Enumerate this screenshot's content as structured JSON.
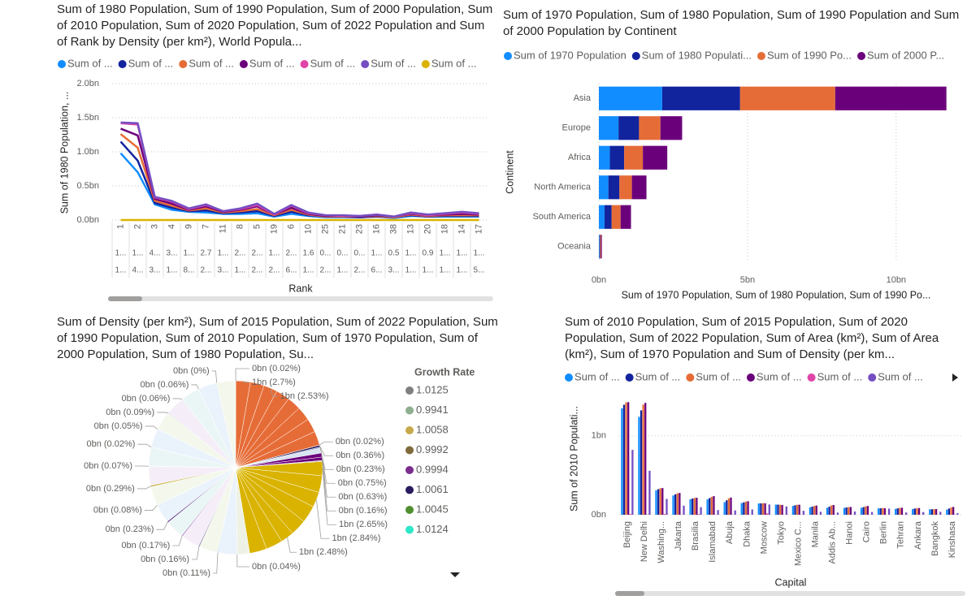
{
  "chart_data": [
    {
      "type": "line",
      "title": "Sum of 1980 Population, Sum of 1990 Population, Sum of 2000 Population, Sum of 2010 Population, Sum of 2020 Population, Sum of 2022 Population and Sum of Rank by Density (per km²), World Popula...",
      "legend_position": "top",
      "grid": true,
      "x_label": "Rank",
      "y_label": "Sum of 1980 Population, ...",
      "categories": [
        "1",
        "2",
        "3",
        "4",
        "9",
        "7",
        "11",
        "8",
        "5",
        "19",
        "6",
        "10",
        "25",
        "21",
        "23",
        "16",
        "38",
        "13",
        "20",
        "18",
        "14",
        "17"
      ],
      "category_levels": [
        [
          "1...",
          "1...",
          "4...",
          "3...",
          "1...",
          "2.7",
          "1...",
          "2...",
          "2...",
          "1...",
          "2...",
          "1.6",
          "0...",
          "0...",
          "0...",
          "1...",
          "0.5",
          "1...",
          "0.9",
          "1...",
          "1...",
          "1..."
        ],
        [
          "1...",
          "4...",
          "3...",
          "1...",
          "8...",
          "2...",
          "3...",
          "1...",
          "2...",
          "2...",
          "6...",
          "1...",
          "2...",
          "1...",
          "2...",
          "6...",
          "3...",
          "1...",
          "1...",
          "1...",
          "1...",
          "5..."
        ]
      ],
      "ylim": [
        0,
        2000000000.0
      ],
      "yticks": [
        {
          "value": 0,
          "label": "0.0bn"
        },
        {
          "value": 500000000.0,
          "label": "0.5bn"
        },
        {
          "value": 1000000000.0,
          "label": "1.0bn"
        },
        {
          "value": 1500000000.0,
          "label": "1.5bn"
        },
        {
          "value": 2000000000.0,
          "label": "2.0bn"
        }
      ],
      "series": [
        {
          "name": "Sum of ...",
          "color": "#118DFF",
          "values": [
            980000000.0,
            700000000.0,
            230000000.0,
            150000000.0,
            120000000.0,
            110000000.0,
            90000000.0,
            90000000.0,
            100000000.0,
            50000000.0,
            90000000.0,
            60000000.0,
            40000000.0,
            40000000.0,
            40000000.0,
            50000000.0,
            30000000.0,
            60000000.0,
            50000000.0,
            50000000.0,
            50000000.0,
            50000000.0
          ]
        },
        {
          "name": "Sum of ...",
          "color": "#12239E",
          "values": [
            1150000000.0,
            870000000.0,
            250000000.0,
            180000000.0,
            130000000.0,
            140000000.0,
            100000000.0,
            110000000.0,
            130000000.0,
            60000000.0,
            120000000.0,
            70000000.0,
            50000000.0,
            50000000.0,
            40000000.0,
            50000000.0,
            40000000.0,
            70000000.0,
            50000000.0,
            60000000.0,
            60000000.0,
            60000000.0
          ]
        },
        {
          "name": "Sum of ...",
          "color": "#E66C37",
          "values": [
            1260000000.0,
            1060000000.0,
            280000000.0,
            210000000.0,
            140000000.0,
            170000000.0,
            110000000.0,
            130000000.0,
            160000000.0,
            70000000.0,
            150000000.0,
            80000000.0,
            50000000.0,
            50000000.0,
            50000000.0,
            60000000.0,
            40000000.0,
            80000000.0,
            60000000.0,
            70000000.0,
            70000000.0,
            70000000.0
          ]
        },
        {
          "name": "Sum of ...",
          "color": "#6B007B",
          "values": [
            1340000000.0,
            1240000000.0,
            310000000.0,
            240000000.0,
            150000000.0,
            200000000.0,
            120000000.0,
            150000000.0,
            200000000.0,
            80000000.0,
            180000000.0,
            90000000.0,
            60000000.0,
            60000000.0,
            50000000.0,
            70000000.0,
            50000000.0,
            90000000.0,
            70000000.0,
            80000000.0,
            90000000.0,
            80000000.0
          ]
        },
        {
          "name": "Sum of ...",
          "color": "#E044A7",
          "values": [
            1420000000.0,
            1400000000.0,
            330000000.0,
            270000000.0,
            160000000.0,
            220000000.0,
            130000000.0,
            160000000.0,
            220000000.0,
            80000000.0,
            210000000.0,
            100000000.0,
            70000000.0,
            60000000.0,
            60000000.0,
            80000000.0,
            50000000.0,
            100000000.0,
            70000000.0,
            90000000.0,
            110000000.0,
            90000000.0
          ]
        },
        {
          "name": "Sum of ...",
          "color": "#744EC2",
          "values": [
            1430000000.0,
            1420000000.0,
            340000000.0,
            280000000.0,
            170000000.0,
            230000000.0,
            130000000.0,
            170000000.0,
            240000000.0,
            90000000.0,
            220000000.0,
            110000000.0,
            70000000.0,
            70000000.0,
            60000000.0,
            80000000.0,
            50000000.0,
            110000000.0,
            80000000.0,
            100000000.0,
            120000000.0,
            100000000.0
          ]
        },
        {
          "name": "Sum of ...",
          "color": "#D9B300",
          "values": [
            1,
            2,
            3,
            4,
            9,
            7,
            11,
            8,
            5,
            19,
            6,
            10,
            25,
            21,
            23,
            16,
            38,
            13,
            20,
            18,
            14,
            17
          ]
        }
      ]
    },
    {
      "type": "bar",
      "orientation": "horizontal",
      "stacked": true,
      "title": "Sum of 1970 Population, Sum of 1980 Population, Sum of 1990 Population and Sum of 2000 Population by Continent",
      "legend_position": "top",
      "grid": true,
      "x_label": "Sum of 1970 Population, Sum of 1980 Population, Sum of 1990 Po...",
      "y_label": "Continent",
      "categories": [
        "Asia",
        "Europe",
        "Africa",
        "North America",
        "South America",
        "Oceania"
      ],
      "xlim": [
        0,
        12000000000.0
      ],
      "xticks": [
        {
          "value": 0,
          "label": "0bn"
        },
        {
          "value": 5000000000.0,
          "label": "5bn"
        },
        {
          "value": 10000000000.0,
          "label": "10bn"
        }
      ],
      "series": [
        {
          "name": "Sum of 1970 Population",
          "color": "#118DFF",
          "values": [
            2130000000.0,
            660000000.0,
            370000000.0,
            320000000.0,
            190000000.0,
            20000000.0
          ]
        },
        {
          "name": "Sum of 1980 Populati...",
          "color": "#12239E",
          "values": [
            2620000000.0,
            690000000.0,
            480000000.0,
            370000000.0,
            240000000.0,
            20000000.0
          ]
        },
        {
          "name": "Sum of 1990 Po...",
          "color": "#E66C37",
          "values": [
            3200000000.0,
            720000000.0,
            630000000.0,
            420000000.0,
            300000000.0,
            30000000.0
          ]
        },
        {
          "name": "Sum of 2000 P...",
          "color": "#6B007B",
          "values": [
            3740000000.0,
            730000000.0,
            820000000.0,
            490000000.0,
            350000000.0,
            30000000.0
          ]
        }
      ]
    },
    {
      "type": "pie",
      "title": "Sum of Density (per km²), Sum of 2015 Population, Sum of 2022 Population, Sum of 1990 Population, Sum of 2010 Population, Sum of 1970 Population, Sum of 2000 Population, Sum of 1980 Population, Su...",
      "legend_position": "right",
      "legend": {
        "title": "Growth Rate",
        "items": [
          {
            "name": "1.0125",
            "color": "#7F7F7F"
          },
          {
            "name": "0.9941",
            "color": "#8FB08F"
          },
          {
            "name": "1.0058",
            "color": "#C8A94B"
          },
          {
            "name": "0.9992",
            "color": "#7F6A3B"
          },
          {
            "name": "0.9994",
            "color": "#7B2D8E"
          },
          {
            "name": "1.0061",
            "color": "#2A1B5E"
          },
          {
            "name": "1.0045",
            "color": "#4F8F2F"
          },
          {
            "name": "1.0124",
            "color": "#2EE6C8"
          }
        ]
      },
      "values": [
        0.02,
        2.7,
        2.6,
        2.53,
        2.6,
        2.55,
        2.62,
        2.58,
        2.6,
        0.02,
        0.36,
        0.23,
        0.9,
        0.75,
        0.63,
        0.16,
        2.65,
        3.1,
        2.84,
        3.2,
        3.0,
        2.48,
        3.1,
        3.2,
        2.3,
        0.04,
        3.49,
        0.11,
        3.49,
        0.16,
        3.49,
        0.17,
        3.49,
        0.23,
        3.49,
        0.08,
        3.49,
        0.29,
        3.49,
        0.07,
        3.49,
        0.02,
        3.49,
        0.05,
        3.49,
        0.09,
        3.49,
        0.06,
        3.49,
        0.06,
        3.49,
        0,
        3.49
      ],
      "value_labels": [
        "0bn (0.02%)",
        "1bn (2.7%)",
        null,
        "1bn (2.53%)",
        null,
        null,
        null,
        null,
        null,
        "0bn (0.02%)",
        "0bn (0.36%)",
        "0bn (0.23%)",
        null,
        "0bn (0.75%)",
        "0bn (0.63%)",
        "0bn (0.16%)",
        "1bn (2.65%)",
        null,
        "1bn (2.84%)",
        null,
        null,
        "1bn (2.48%)",
        null,
        null,
        null,
        "0bn (0.04%)",
        null,
        "0bn (0.11%)",
        null,
        "0bn (0.16%)",
        null,
        "0bn (0.17%)",
        null,
        "0bn (0.23%)",
        null,
        "0bn (0.08%)",
        null,
        "0bn (0.29%)",
        null,
        "0bn (0.07%)",
        null,
        "0bn (0.02%)",
        null,
        "0bn (0.05%)",
        null,
        "0bn (0.09%)",
        null,
        "0bn (0.06%)",
        null,
        "0bn (0.06%)",
        null,
        "0bn (0%)",
        null
      ],
      "colors": [
        "#7F7F7F",
        "#E66C37",
        "#E66C37",
        "#E66C37",
        "#E66C37",
        "#E66C37",
        "#E66C37",
        "#E66C37",
        "#E66C37",
        "#C8A94B",
        "#2A1B5E",
        "#8FA6C8",
        "#D8E4F0",
        "#6B007B",
        "#6B007B",
        "#B0B0B0",
        "#D9B300",
        "#D9B300",
        "#D9B300",
        "#D9B300",
        "#D9B300",
        "#D9B300",
        "#D9B300",
        "#D9B300",
        "#EEF2E6",
        "#7F7F7F",
        "#EAF2FB",
        "#2E9FD0",
        "#F4F8EC",
        "#3A2A7A",
        "#F5EEF8",
        "#8A4FB0",
        "#EAF6F5",
        "#5B2C83",
        "#EAF2FB",
        "#A9C24B",
        "#F4F8EC",
        "#C9B347",
        "#F5EEF8",
        "#7FB7E0",
        "#EAF6F5",
        "#D3D3D3",
        "#EAF2FB",
        "#B0C8E8",
        "#F4F8EC",
        "#2C7FB8",
        "#F5EEF8",
        "#9A9A9A",
        "#EAF6F5",
        "#7AA7D6",
        "#EAF2FB",
        "#C9A94B",
        "#F4F8EC"
      ]
    },
    {
      "type": "bar",
      "orientation": "vertical",
      "stacked": false,
      "title": "Sum of 2010 Population, Sum of 2015 Population, Sum of 2020 Population, Sum of 2022 Population, Sum of Area (km²), Sum of Area (km²), Sum of 1970 Population and Sum of Density (per km...",
      "legend_position": "top",
      "grid": true,
      "x_label": "Capital",
      "y_label": "Sum of 2010 Populati...",
      "categories": [
        "Beijing",
        "New Delhi",
        "Washing...",
        "Jakarta",
        "Brasilia",
        "Islamabad",
        "Abuja",
        "Dhaka",
        "Moscow",
        "Tokyo",
        "Mexico C...",
        "Manila",
        "Addis Ab...",
        "Hanoi",
        "Cairo",
        "Berlin",
        "Tehran",
        "Ankara",
        "Bangkok",
        "Kinshasa"
      ],
      "ylim": [
        0,
        1450000000.0
      ],
      "yticks": [
        {
          "value": 0,
          "label": "0bn"
        },
        {
          "value": 1000000000.0,
          "label": "1bn"
        }
      ],
      "series": [
        {
          "name": "Sum of ...",
          "color": "#118DFF",
          "values": [
            1348000000.0,
            1240000000.0,
            311000000.0,
            244000000.0,
            196000000.0,
            194000000.0,
            160000000.0,
            148000000.0,
            143000000.0,
            128000000.0,
            112000000.0,
            94000000.0,
            89000000.0,
            87000000.0,
            88000000.0,
            81000000.0,
            75000000.0,
            73000000.0,
            69000000.0,
            66000000.0
          ]
        },
        {
          "name": "Sum of ...",
          "color": "#12239E",
          "values": [
            1393000000.0,
            1322000000.0,
            324000000.0,
            259000000.0,
            205000000.0,
            211000000.0,
            183000000.0,
            157000000.0,
            144000000.0,
            128000000.0,
            120000000.0,
            103000000.0,
            102000000.0,
            92000000.0,
            97000000.0,
            82000000.0,
            81000000.0,
            79000000.0,
            70000000.0,
            79000000.0
          ]
        },
        {
          "name": "Sum of ...",
          "color": "#E66C37",
          "values": [
            1424000000.0,
            1396000000.0,
            336000000.0,
            272000000.0,
            213000000.0,
            227000000.0,
            208000000.0,
            167000000.0,
            146000000.0,
            126000000.0,
            126000000.0,
            112000000.0,
            118000000.0,
            96000000.0,
            107000000.0,
            84000000.0,
            87000000.0,
            84000000.0,
            71000000.0,
            92000000.0
          ]
        },
        {
          "name": "Sum of ...",
          "color": "#6B007B",
          "values": [
            1426000000.0,
            1417000000.0,
            338000000.0,
            276000000.0,
            215000000.0,
            236000000.0,
            218000000.0,
            171000000.0,
            145000000.0,
            124000000.0,
            127000000.0,
            116000000.0,
            123000000.0,
            98000000.0,
            111000000.0,
            83000000.0,
            89000000.0,
            85000000.0,
            72000000.0,
            99000000.0
          ]
        },
        {
          "name": "Sum of ...",
          "color": "#E044A7",
          "values": [
            9710000.0,
            3290000.0,
            9370000.0,
            1900000.0,
            8520000.0,
            880000.0,
            920000.0,
            150000.0,
            17100000.0,
            380000.0,
            1960000.0,
            340000.0,
            1100000.0,
            330000.0,
            1000000.0,
            360000.0,
            1650000.0,
            780000.0,
            510000.0,
            2340000.0
          ]
        },
        {
          "name": "Sum of ...",
          "color": "#744EC2",
          "values": [
            822000000.0,
            557000000.0,
            200000000.0,
            115000000.0,
            96000000.0,
            59000000.0,
            55000000.0,
            67000000.0,
            130000000.0,
            105000000.0,
            50000000.0,
            37000000.0,
            28000000.0,
            41000000.0,
            35000000.0,
            78000000.0,
            29000000.0,
            34000000.0,
            36000000.0,
            20000000.0
          ]
        }
      ]
    }
  ]
}
